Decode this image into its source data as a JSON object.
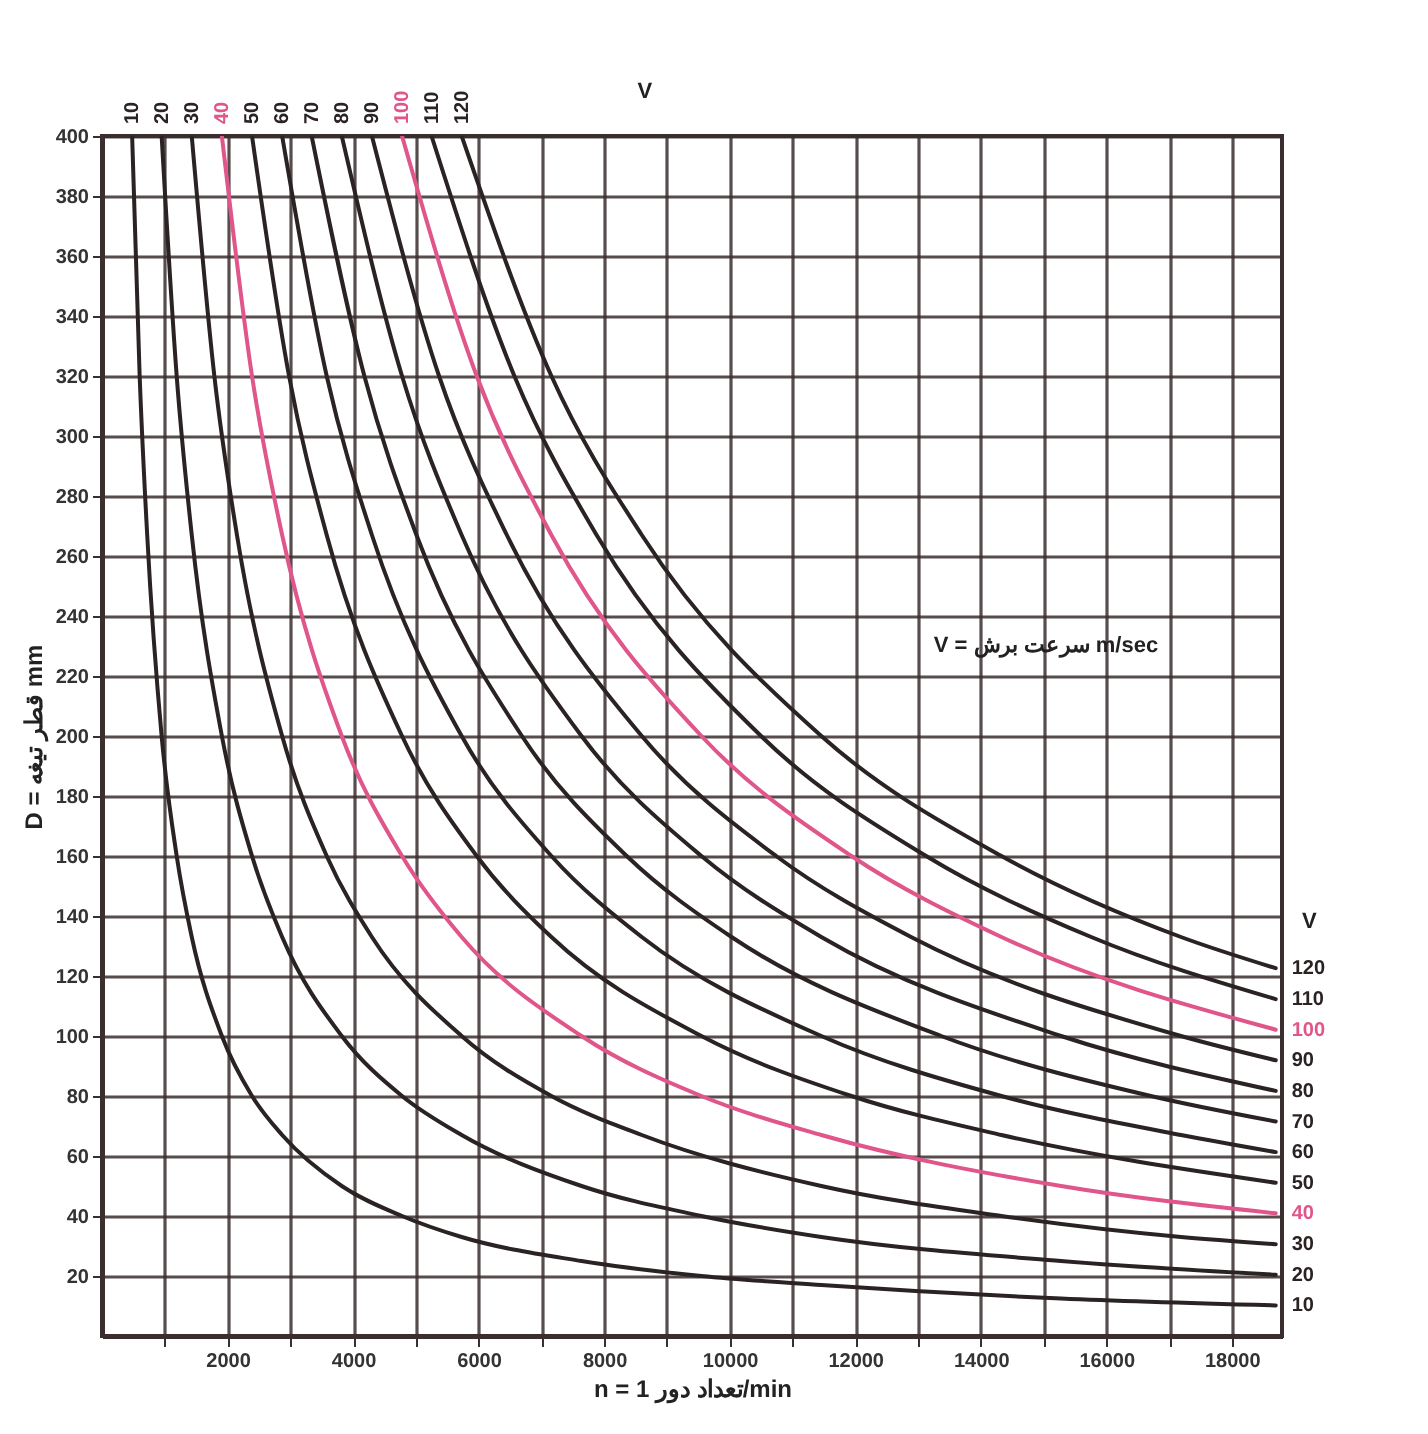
{
  "chart_data": {
    "type": "line",
    "xlabel": "n = تعداد دور 1/min",
    "ylabel": "D = قطر تیغه mm",
    "annotations": [
      "V = سرعت برش m/sec",
      "V",
      "V"
    ],
    "xlim": [
      0,
      18800
    ],
    "ylim": [
      0,
      400
    ],
    "xticks": [
      {
        "value": 1000,
        "label": null
      },
      2000,
      {
        "value": 3000,
        "label": null
      },
      4000,
      {
        "value": 5000,
        "label": null
      },
      6000,
      {
        "value": 7000,
        "label": null
      },
      8000,
      {
        "value": 9000,
        "label": null
      },
      10000,
      {
        "value": 11000,
        "label": null
      },
      12000,
      {
        "value": 13000,
        "label": null
      },
      14000,
      {
        "value": 15000,
        "label": null
      },
      16000,
      {
        "value": 17000,
        "label": null
      },
      18000
    ],
    "yticks": [
      20,
      40,
      60,
      80,
      100,
      120,
      140,
      160,
      180,
      200,
      220,
      240,
      260,
      280,
      300,
      320,
      340,
      360,
      380,
      400
    ],
    "grid": true,
    "legend": false,
    "marker": "none",
    "line_style": "solid",
    "series": [
      {
        "name": "10",
        "color": "#2b2323",
        "x": [
          480,
          600,
          720,
          950,
          1190,
          1430,
          1910,
          2390,
          2870,
          3820,
          4780,
          5730,
          7640,
          9550,
          11460,
          15280,
          18700
        ],
        "values": [
          400,
          320,
          267,
          200,
          160,
          133,
          100,
          80,
          67,
          50,
          40,
          33,
          25,
          20,
          17,
          12.5,
          10.2
        ]
      },
      {
        "name": "20",
        "color": "#2b2323",
        "x": [
          950,
          1190,
          1430,
          1910,
          2390,
          2870,
          3820,
          4780,
          5730,
          7640,
          9550,
          11460,
          15280,
          18700
        ],
        "values": [
          400,
          320,
          267,
          200,
          160,
          133,
          100,
          80,
          67,
          50,
          40,
          33,
          25,
          20.4
        ]
      },
      {
        "name": "30",
        "color": "#2b2323",
        "x": [
          1430,
          1790,
          2150,
          2870,
          3580,
          4300,
          5730,
          7160,
          8600,
          11460,
          14330,
          17190,
          18700
        ],
        "values": [
          400,
          320,
          267,
          200,
          160,
          133,
          100,
          80,
          67,
          50,
          40,
          33,
          30.6
        ]
      },
      {
        "name": "40",
        "color": "#e0558a",
        "x": [
          1910,
          2390,
          2870,
          3820,
          4780,
          5730,
          7640,
          9550,
          11460,
          15280,
          18700
        ],
        "values": [
          400,
          320,
          267,
          200,
          160,
          133,
          100,
          80,
          67,
          50,
          40.9
        ]
      },
      {
        "name": "50",
        "color": "#2b2323",
        "x": [
          2390,
          2980,
          3580,
          4780,
          5970,
          7160,
          9550,
          11940,
          14330,
          18700
        ],
        "values": [
          400,
          320,
          267,
          200,
          160,
          133,
          100,
          80,
          67,
          51.1
        ]
      },
      {
        "name": "60",
        "color": "#2b2323",
        "x": [
          2870,
          3580,
          4300,
          5730,
          7160,
          8600,
          11460,
          14330,
          17190,
          18700
        ],
        "values": [
          400,
          320,
          267,
          200,
          160,
          133,
          100,
          80,
          67,
          61.3
        ]
      },
      {
        "name": "70",
        "color": "#2b2323",
        "x": [
          3340,
          4180,
          5010,
          6690,
          8360,
          10030,
          13370,
          16710,
          18700
        ],
        "values": [
          400,
          320,
          267,
          200,
          160,
          133,
          100,
          80,
          71.5
        ]
      },
      {
        "name": "80",
        "color": "#2b2323",
        "x": [
          3820,
          4780,
          5730,
          7640,
          9550,
          11460,
          15280,
          18700
        ],
        "values": [
          400,
          320,
          267,
          200,
          160,
          133,
          100,
          81.7
        ]
      },
      {
        "name": "90",
        "color": "#2b2323",
        "x": [
          4300,
          5370,
          6450,
          8600,
          10740,
          12890,
          17190,
          18700
        ],
        "values": [
          400,
          320,
          267,
          200,
          160,
          133,
          100,
          91.9
        ]
      },
      {
        "name": "100",
        "color": "#e0558a",
        "x": [
          4780,
          5970,
          7160,
          9550,
          11940,
          14330,
          18700
        ],
        "values": [
          400,
          320,
          267,
          200,
          160,
          133,
          102.1
        ]
      },
      {
        "name": "110",
        "color": "#2b2323",
        "x": [
          5250,
          6570,
          7880,
          10500,
          13130,
          15760,
          18700
        ],
        "values": [
          400,
          320,
          267,
          200,
          160,
          133,
          112.3
        ]
      },
      {
        "name": "120",
        "color": "#2b2323",
        "x": [
          5730,
          7160,
          8600,
          11460,
          14330,
          17190,
          18700
        ],
        "values": [
          400,
          320,
          267,
          200,
          160,
          133,
          122.6
        ]
      }
    ]
  }
}
